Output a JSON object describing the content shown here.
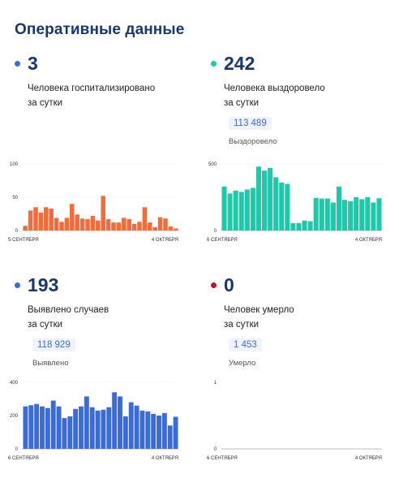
{
  "page_title": "Оперативные данные",
  "panels": [
    {
      "id": "hospitalized",
      "value": "3",
      "dot_color": "#3a6bd8",
      "desc_line1": "Человека госпитализировано",
      "desc_line2": "за сутки",
      "total_value": "",
      "total_label": ""
    },
    {
      "id": "recovered",
      "value": "242",
      "dot_color": "#1fc8a8",
      "desc_line1": "Человека выздоровело",
      "desc_line2": "за сутки",
      "total_value": "113 489",
      "total_label": "Выздоровело"
    },
    {
      "id": "detected",
      "value": "193",
      "dot_color": "#3a6bd8",
      "desc_line1": "Выявлено случаев",
      "desc_line2": "за сутки",
      "total_value": "118 929",
      "total_label": "Выявлено"
    },
    {
      "id": "deaths",
      "value": "0",
      "dot_color": "#c8102e",
      "desc_line1": "Человек умерло",
      "desc_line2": "за сутки",
      "total_value": "1 453",
      "total_label": "Умерло"
    }
  ],
  "chart_data": [
    {
      "type": "bar",
      "color": "#f26b3a",
      "ylim": [
        0,
        100
      ],
      "yticks": [
        "0",
        "50",
        "100"
      ],
      "grid": true,
      "x_start_label": "5 СЕНТЯБРЯ",
      "x_end_label": "4 ОКТЯБРЯ",
      "values": [
        7,
        30,
        35,
        27,
        35,
        33,
        19,
        13,
        19,
        40,
        24,
        18,
        17,
        22,
        15,
        52,
        17,
        12,
        12,
        19,
        17,
        10,
        13,
        35,
        12,
        5,
        20,
        18,
        6,
        3
      ]
    },
    {
      "type": "bar",
      "color": "#1fc8a8",
      "ylim": [
        0,
        500
      ],
      "yticks": [
        "0",
        "500"
      ],
      "grid": true,
      "x_start_label": "6 СЕНТЯБРЯ",
      "x_end_label": "4 ОКТЯБРЯ",
      "values": [
        330,
        278,
        300,
        290,
        308,
        320,
        480,
        450,
        470,
        400,
        360,
        350,
        55,
        55,
        75,
        70,
        245,
        240,
        240,
        210,
        330,
        230,
        220,
        250,
        235,
        250,
        210,
        242
      ]
    },
    {
      "type": "bar",
      "color": "#3a6bd8",
      "ylim": [
        0,
        400
      ],
      "yticks": [
        "0",
        "200",
        "400"
      ],
      "grid": true,
      "x_start_label": "6 СЕНТЯБРЯ",
      "x_end_label": "4 ОКТЯБРЯ",
      "values": [
        255,
        262,
        270,
        255,
        245,
        290,
        255,
        185,
        195,
        240,
        255,
        315,
        250,
        230,
        235,
        250,
        340,
        315,
        195,
        280,
        260,
        230,
        225,
        210,
        200,
        215,
        140,
        193
      ]
    },
    {
      "type": "bar",
      "color": "#888888",
      "ylim": [
        0,
        1
      ],
      "yticks": [
        "0",
        "1"
      ],
      "grid": false,
      "x_start_label": "6 СЕНТЯБРЯ",
      "x_end_label": "4 ОКТЯБРЯ",
      "values": [
        0,
        0,
        0,
        0,
        0,
        0,
        0,
        0,
        0,
        0,
        0,
        0,
        0,
        0,
        0,
        0,
        0,
        0,
        0,
        0,
        0,
        0,
        0,
        0,
        0,
        0,
        0,
        0
      ]
    }
  ]
}
